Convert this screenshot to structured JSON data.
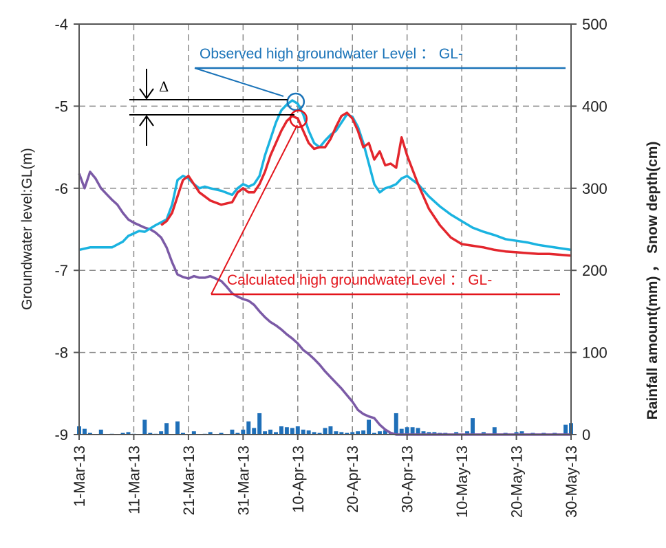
{
  "chart_data": {
    "type": "line",
    "title": "",
    "xlabel": "",
    "ylabel_left": "Groundwater level:GL(m)",
    "ylabel_right": "Rainfall amount(mm) ， Snow depth(cm)",
    "x_range_days": [
      0,
      90
    ],
    "ylim_left": [
      -9,
      -4
    ],
    "ylim_right": [
      0,
      500
    ],
    "yticks_left": [
      -4,
      -5,
      -6,
      -7,
      -8,
      -9
    ],
    "yticks_right": [
      500,
      400,
      300,
      200,
      100,
      0
    ],
    "xticks": [
      {
        "day": 0,
        "label": "1-Mar-13"
      },
      {
        "day": 10,
        "label": "11-Mar-13"
      },
      {
        "day": 20,
        "label": "21-Mar-13"
      },
      {
        "day": 30,
        "label": "31-Mar-13"
      },
      {
        "day": 40,
        "label": "10-Apr-13"
      },
      {
        "day": 50,
        "label": "20-Apr-13"
      },
      {
        "day": 60,
        "label": "30-Apr-13"
      },
      {
        "day": 70,
        "label": "10-May-13"
      },
      {
        "day": 80,
        "label": "20-May-13"
      },
      {
        "day": 90,
        "label": "30-May-13"
      }
    ],
    "series": [
      {
        "name": "Observed groundwater level",
        "axis": "left",
        "color": "#1ab3e0",
        "x": [
          0,
          2,
          4,
          6,
          8,
          9,
          11,
          12,
          14,
          16,
          17,
          18,
          19,
          20,
          21,
          22,
          23,
          24,
          26,
          28,
          29,
          30,
          31,
          32,
          33,
          34,
          35,
          36,
          37,
          38,
          39,
          40,
          41,
          42,
          43,
          44,
          45,
          46,
          47,
          48,
          49,
          50,
          51,
          52,
          53,
          54,
          55,
          56,
          57,
          58,
          59,
          60,
          62,
          64,
          66,
          68,
          70,
          72,
          74,
          76,
          78,
          80,
          82,
          84,
          86,
          88,
          90
        ],
        "y": [
          -6.75,
          -6.72,
          -6.72,
          -6.72,
          -6.65,
          -6.58,
          -6.52,
          -6.53,
          -6.45,
          -6.38,
          -6.2,
          -5.9,
          -5.85,
          -5.88,
          -5.95,
          -6.0,
          -5.98,
          -6.0,
          -6.03,
          -6.08,
          -6.0,
          -5.95,
          -5.98,
          -5.95,
          -5.85,
          -5.6,
          -5.4,
          -5.2,
          -5.05,
          -4.98,
          -4.93,
          -4.97,
          -5.1,
          -5.3,
          -5.45,
          -5.5,
          -5.42,
          -5.35,
          -5.3,
          -5.2,
          -5.1,
          -5.13,
          -5.25,
          -5.45,
          -5.7,
          -5.95,
          -6.05,
          -6.0,
          -5.98,
          -5.95,
          -5.88,
          -5.85,
          -5.95,
          -6.1,
          -6.22,
          -6.32,
          -6.4,
          -6.48,
          -6.53,
          -6.57,
          -6.62,
          -6.64,
          -6.66,
          -6.69,
          -6.71,
          -6.73,
          -6.75
        ]
      },
      {
        "name": "Calculated groundwater level",
        "axis": "left",
        "color": "#e3262d",
        "x": [
          15,
          16,
          17,
          18,
          19,
          20,
          21,
          22,
          23,
          24,
          26,
          28,
          29,
          30,
          31,
          32,
          33,
          34,
          35,
          36,
          37,
          38,
          39,
          40,
          41,
          42,
          43,
          44,
          45,
          46,
          47,
          48,
          49,
          50,
          51,
          52,
          53,
          54,
          55,
          56,
          57,
          58,
          59,
          60,
          62,
          64,
          66,
          68,
          70,
          72,
          74,
          76,
          78,
          80,
          82,
          84,
          86,
          88,
          90
        ],
        "y": [
          -6.45,
          -6.4,
          -6.3,
          -6.1,
          -5.9,
          -5.85,
          -5.95,
          -6.05,
          -6.1,
          -6.15,
          -6.2,
          -6.17,
          -6.05,
          -6.0,
          -6.05,
          -6.05,
          -5.95,
          -5.8,
          -5.6,
          -5.45,
          -5.3,
          -5.18,
          -5.12,
          -5.15,
          -5.3,
          -5.45,
          -5.52,
          -5.5,
          -5.5,
          -5.4,
          -5.25,
          -5.12,
          -5.08,
          -5.15,
          -5.3,
          -5.5,
          -5.45,
          -5.65,
          -5.55,
          -5.72,
          -5.7,
          -5.75,
          -5.38,
          -5.6,
          -5.95,
          -6.25,
          -6.45,
          -6.6,
          -6.68,
          -6.7,
          -6.72,
          -6.75,
          -6.77,
          -6.78,
          -6.79,
          -6.8,
          -6.8,
          -6.81,
          -6.82
        ]
      },
      {
        "name": "Snow depth",
        "axis": "right",
        "color": "#7b5aa6",
        "x": [
          0,
          1,
          2,
          3,
          4,
          5,
          6,
          7,
          8,
          9,
          10,
          11,
          12,
          13,
          14,
          15,
          16,
          17,
          18,
          19,
          20,
          21,
          22,
          23,
          24,
          25,
          26,
          27,
          28,
          29,
          30,
          31,
          32,
          33,
          34,
          35,
          36,
          37,
          38,
          39,
          40,
          41,
          42,
          43,
          44,
          45,
          46,
          47,
          48,
          49,
          50,
          51,
          52,
          53,
          54,
          55,
          56,
          57,
          58,
          60,
          65,
          70,
          75,
          80,
          85,
          90
        ],
        "y": [
          318,
          300,
          320,
          312,
          300,
          293,
          286,
          280,
          270,
          262,
          258,
          255,
          252,
          250,
          246,
          240,
          228,
          210,
          195,
          192,
          190,
          193,
          191,
          191,
          193,
          190,
          187,
          180,
          172,
          168,
          165,
          163,
          158,
          150,
          143,
          137,
          133,
          128,
          122,
          117,
          111,
          103,
          98,
          92,
          85,
          77,
          70,
          63,
          56,
          48,
          40,
          30,
          25,
          22,
          20,
          12,
          6,
          2,
          0,
          0,
          0,
          0,
          0,
          0,
          0,
          0
        ]
      }
    ],
    "bars": {
      "name": "Rainfall amount",
      "axis": "right",
      "color": "#1f6fb8",
      "x": [
        0,
        1,
        2,
        4,
        6,
        8,
        9,
        10,
        12,
        13,
        14,
        15,
        16,
        18,
        19,
        21,
        23,
        24,
        26,
        28,
        29,
        30,
        31,
        32,
        33,
        34,
        35,
        36,
        37,
        38,
        39,
        40,
        41,
        42,
        43,
        44,
        45,
        46,
        47,
        48,
        49,
        50,
        51,
        52,
        53,
        54,
        55,
        56,
        57,
        58,
        59,
        60,
        61,
        62,
        63,
        64,
        65,
        66,
        67,
        69,
        71,
        72,
        74,
        76,
        78,
        80,
        81,
        83,
        85,
        87,
        89,
        90
      ],
      "y": [
        10,
        7,
        2,
        6,
        1,
        2,
        3,
        1,
        18,
        2,
        1,
        4,
        14,
        16,
        2,
        4,
        1,
        3,
        2,
        6,
        2,
        6,
        16,
        8,
        26,
        4,
        6,
        3,
        10,
        9,
        8,
        10,
        6,
        5,
        3,
        2,
        8,
        10,
        4,
        3,
        2,
        3,
        4,
        5,
        18,
        2,
        4,
        5,
        3,
        26,
        7,
        9,
        9,
        8,
        4,
        3,
        3,
        2,
        2,
        3,
        4,
        20,
        3,
        9,
        2,
        3,
        4,
        2,
        2,
        2,
        12,
        14
      ]
    },
    "annotations": {
      "observed_label": "Observed high groundwater Level ： GL-",
      "calculated_label": "Calculated high groundwaterLevel ： GL-",
      "delta_symbol": "Δ",
      "observed_peak": {
        "day": 39,
        "value": -4.93
      },
      "calculated_peak": {
        "day": 39,
        "value": -5.12
      },
      "observed_color": "#1a73b8",
      "calculated_color": "#e3141b"
    }
  }
}
